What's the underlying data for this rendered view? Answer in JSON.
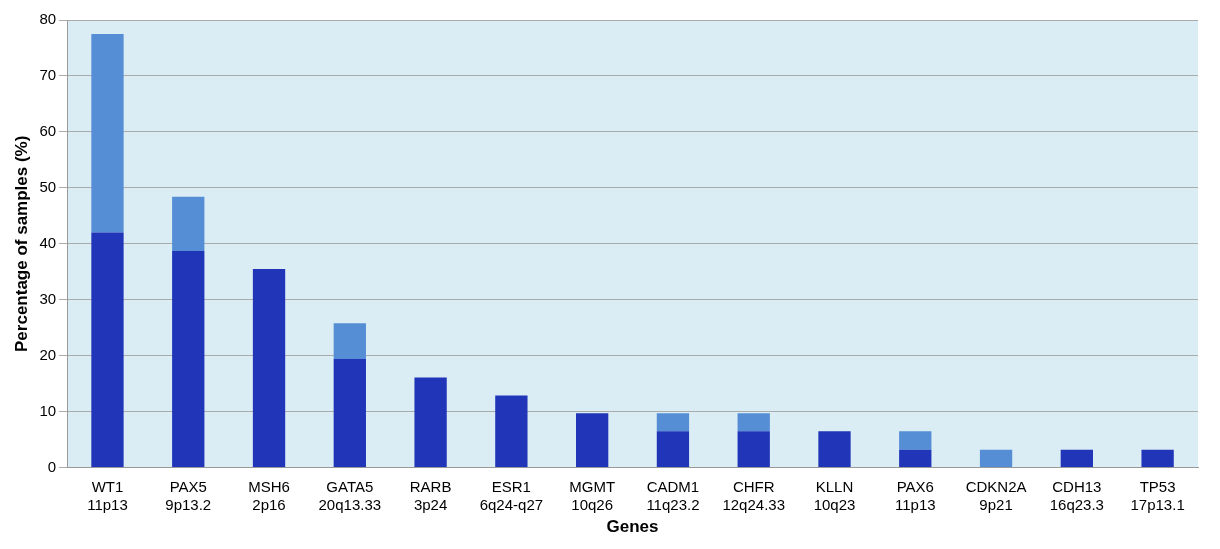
{
  "chart_data": {
    "type": "bar",
    "stacked": true,
    "xlabel": "Genes",
    "ylabel": "Percentage of samples (%)",
    "categories": [
      "WT1\n11p13",
      "PAX5\n9p13.2",
      "MSH6\n2p16",
      "GATA5\n20q13.33",
      "RARB\n3p24",
      "ESR1\n6q24-q27",
      "MGMT\n10q26",
      "CADM1\n11q23.2",
      "CHFR\n12q24.33",
      "KLLN\n10q23",
      "PAX6\n11p13",
      "CDKN2A\n9p21",
      "CDH13\n16q23.3",
      "TP53\n17p13.1"
    ],
    "series": [
      {
        "color": "#2135b8",
        "values": [
          42,
          38.7,
          35.5,
          19.4,
          16.1,
          12.9,
          9.7,
          6.5,
          6.5,
          6.5,
          3.2,
          0,
          3.2,
          3.2
        ]
      },
      {
        "color": "#558ed5",
        "values": [
          35.5,
          9.7,
          0,
          6.4,
          0,
          0,
          0,
          3.2,
          3.2,
          0,
          3.3,
          3.2,
          0,
          0
        ]
      }
    ],
    "ylim": [
      0,
      80
    ],
    "yticks": [
      0,
      10,
      20,
      30,
      40,
      50,
      60,
      70,
      80
    ],
    "grid": "y"
  }
}
